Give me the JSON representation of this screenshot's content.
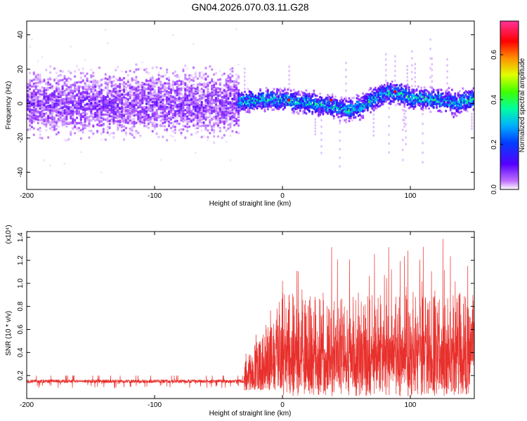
{
  "title": "GN04.2026.070.03.11.G28",
  "chart_data": [
    {
      "type": "heatmap",
      "title": "GN04.2026.070.03.11.G28",
      "xlabel": "Height of straight line (km)",
      "ylabel": "Frequency (Hz)",
      "xlim": [
        -200,
        150
      ],
      "ylim": [
        -50,
        48
      ],
      "xticks": [
        -200,
        -100,
        0,
        100
      ],
      "yticks": [
        40,
        20,
        0,
        -20,
        -40
      ],
      "grid": false,
      "colorbar": {
        "label": "Normalized spectral amplitude",
        "range": [
          0,
          0.75
        ],
        "ticks": [
          0.0,
          0.2,
          0.4,
          0.6
        ],
        "tick_labels": [
          "0.0",
          "0.2",
          "0.4",
          "0.6"
        ],
        "colormap": [
          "#ffffff",
          "#9b30ff",
          "#3a00ff",
          "#0050ff",
          "#00c8ff",
          "#00ff80",
          "#60ff00",
          "#ffff00",
          "#ff8000",
          "#ff0000",
          "#ff40a0"
        ]
      },
      "regions": [
        {
          "x_range": [
            -200,
            -35
          ],
          "freq_center": 0,
          "freq_halfwidth": 20,
          "amplitude": 0.05,
          "description": "broad low-amplitude band"
        },
        {
          "x_range": [
            -35,
            150
          ],
          "freq_center_track": [
            [
              -35,
              1
            ],
            [
              -20,
              2
            ],
            [
              0,
              2
            ],
            [
              10,
              1
            ],
            [
              20,
              0
            ],
            [
              40,
              -2
            ],
            [
              50,
              -4
            ],
            [
              60,
              -2
            ],
            [
              80,
              6
            ],
            [
              90,
              6
            ],
            [
              100,
              3
            ],
            [
              120,
              2
            ],
            [
              135,
              0
            ],
            [
              150,
              3
            ]
          ],
          "freq_halfwidth": 8,
          "amplitude": 0.35,
          "description": "narrow high-amplitude track"
        }
      ]
    },
    {
      "type": "line",
      "xlabel": "Height of straight line (km)",
      "ylabel": "SNR (10 * v/v)",
      "scale_label": "(x10⁴)",
      "xlim": [
        -200,
        150
      ],
      "ylim": [
        0.0,
        1.45
      ],
      "xticks": [
        -200,
        -100,
        0,
        100
      ],
      "yticks": [
        0.2,
        0.4,
        0.6,
        0.8,
        1.0,
        1.2,
        1.4
      ],
      "ytick_labels": [
        "0.2",
        "0.4",
        "0.6",
        "0.8",
        "1.0",
        "1.2",
        "1.4"
      ],
      "grid": false,
      "series": [
        {
          "name": "SNR",
          "color": "#e8302c",
          "segments": [
            {
              "x_range": [
                -200,
                -30
              ],
              "baseline": 0.15,
              "noise_range": [
                0.09,
                0.2
              ]
            },
            {
              "x_range": [
                -30,
                0
              ],
              "envelope_max_rising": [
                0.3,
                0.9
              ],
              "min": 0.02
            },
            {
              "x_range": [
                0,
                150
              ],
              "envelope_max": 1.42,
              "typical_max": 0.9,
              "min": 0.02
            }
          ]
        }
      ]
    }
  ],
  "icons": {
    "tick_label_fontsize_hint": "small"
  }
}
